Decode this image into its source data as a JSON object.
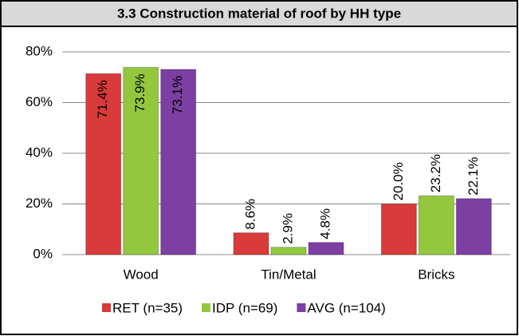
{
  "chart_data": {
    "type": "bar",
    "title": "3.3 Construction material of roof by HH type",
    "categories": [
      "Wood",
      "Tin/Metal",
      "Bricks"
    ],
    "series": [
      {
        "name": "RET (n=35)",
        "color": "#d93a3a",
        "values": [
          71.4,
          8.6,
          20.0
        ],
        "value_labels": [
          "71.4%",
          "8.6%",
          "20.0%"
        ]
      },
      {
        "name": "IDP (n=69)",
        "color": "#93c83e",
        "values": [
          73.9,
          2.9,
          23.2
        ],
        "value_labels": [
          "73.9%",
          "2.9%",
          "23.2%"
        ]
      },
      {
        "name": "AVG (n=104)",
        "color": "#7c3fa3",
        "values": [
          73.1,
          4.8,
          22.1
        ],
        "value_labels": [
          "73.1%",
          "4.8%",
          "22.1%"
        ]
      }
    ],
    "ylim": [
      0,
      80
    ],
    "yticks": [
      {
        "value": 0,
        "label": "0%"
      },
      {
        "value": 20,
        "label": "20%"
      },
      {
        "value": 40,
        "label": "40%"
      },
      {
        "value": 60,
        "label": "60%"
      },
      {
        "value": 80,
        "label": "80%"
      }
    ],
    "grid": true,
    "legend": "bottom"
  }
}
